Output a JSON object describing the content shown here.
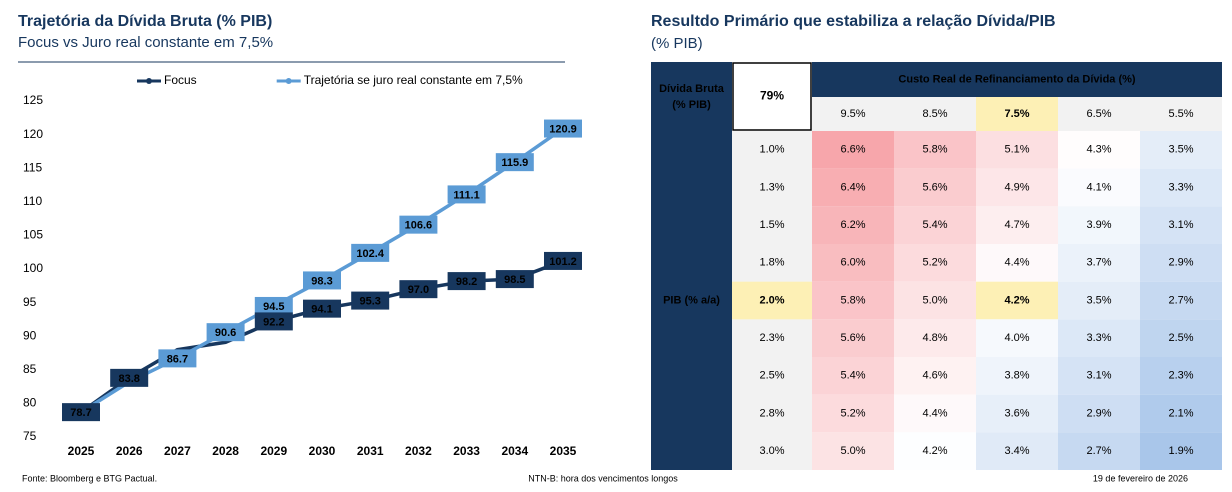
{
  "chart_data": [
    {
      "type": "line",
      "title": "Trajetória da Dívida Bruta (% PIB)",
      "subtitle": "Focus vs Juro real constante em 7,5%",
      "categories": [
        "2025",
        "2026",
        "2027",
        "2028",
        "2029",
        "2030",
        "2031",
        "2032",
        "2033",
        "2034",
        "2035"
      ],
      "series": [
        {
          "name": "Focus",
          "color": "#17375e",
          "values": [
            78.7,
            83.8,
            88.0,
            89.1,
            92.2,
            94.1,
            95.3,
            97.0,
            98.2,
            98.5,
            101.2
          ],
          "value_labels": [
            "78.7",
            "83.8",
            null,
            null,
            "92.2",
            "94.1",
            "95.3",
            "97.0",
            "98.2",
            "98.5",
            "101.2"
          ]
        },
        {
          "name": "Trajetória se juro real constante em 7,5%",
          "color": "#5b9bd5",
          "values": [
            78.7,
            83.2,
            86.7,
            90.6,
            94.5,
            98.3,
            102.4,
            106.6,
            111.1,
            115.9,
            120.9
          ],
          "value_labels": [
            null,
            null,
            "86.7",
            "90.6",
            "94.5",
            "98.3",
            "102.4",
            "106.6",
            "111.1",
            "115.9",
            "120.9"
          ]
        }
      ],
      "ylim": [
        75,
        125
      ],
      "yticks": [
        75,
        80,
        85,
        90,
        95,
        100,
        105,
        110,
        115,
        120,
        125
      ],
      "grid": false,
      "legend": "top"
    },
    {
      "type": "heatmap",
      "title": "Resultdo Primário que estabiliza a relação Dívida/PIB",
      "subtitle": "(% PIB)",
      "corner_label": [
        "Dívida Bruta",
        "(% PIB)"
      ],
      "corner_value": "79%",
      "x_label": "Custo Real de Refinanciamento da Dívida (%)",
      "y_label": "PIB (% a/a)",
      "x_categories": [
        "9.5%",
        "8.5%",
        "7.5%",
        "6.5%",
        "5.5%"
      ],
      "y_categories": [
        "1.0%",
        "1.3%",
        "1.5%",
        "1.8%",
        "2.0%",
        "2.3%",
        "2.5%",
        "2.8%",
        "3.0%"
      ],
      "values": [
        [
          6.6,
          5.8,
          5.1,
          4.3,
          3.5
        ],
        [
          6.4,
          5.6,
          4.9,
          4.1,
          3.3
        ],
        [
          6.2,
          5.4,
          4.7,
          3.9,
          3.1
        ],
        [
          6.0,
          5.2,
          4.4,
          3.7,
          2.9
        ],
        [
          5.8,
          5.0,
          4.2,
          3.5,
          2.7
        ],
        [
          5.6,
          4.8,
          4.0,
          3.3,
          2.5
        ],
        [
          5.4,
          4.6,
          3.8,
          3.1,
          2.3
        ],
        [
          5.2,
          4.4,
          3.6,
          2.9,
          2.1
        ],
        [
          5.0,
          4.2,
          3.4,
          2.7,
          1.9
        ]
      ],
      "value_labels": [
        [
          "6.6%",
          "5.8%",
          "5.1%",
          "4.3%",
          "3.5%"
        ],
        [
          "6.4%",
          "5.6%",
          "4.9%",
          "4.1%",
          "3.3%"
        ],
        [
          "6.2%",
          "5.4%",
          "4.7%",
          "3.9%",
          "3.1%"
        ],
        [
          "6.0%",
          "5.2%",
          "4.4%",
          "3.7%",
          "2.9%"
        ],
        [
          "5.8%",
          "5.0%",
          "4.2%",
          "3.5%",
          "2.7%"
        ],
        [
          "5.6%",
          "4.8%",
          "4.0%",
          "3.3%",
          "2.5%"
        ],
        [
          "5.4%",
          "4.6%",
          "3.8%",
          "3.1%",
          "2.3%"
        ],
        [
          "5.2%",
          "4.4%",
          "3.6%",
          "2.9%",
          "2.1%"
        ],
        [
          "5.0%",
          "4.2%",
          "3.4%",
          "2.7%",
          "1.9%"
        ]
      ],
      "colors": [
        "#a9c6ea",
        "#ffffff",
        "#f7a6ab"
      ],
      "header_color": "#17375e",
      "highlight_color": "#fdf0b5"
    }
  ],
  "footer": {
    "source": "Fonte: Bloomberg e BTG Pactual.",
    "center": "NTN-B: hora dos vencimentos longos",
    "date": "19 de fevereiro de 2026"
  }
}
